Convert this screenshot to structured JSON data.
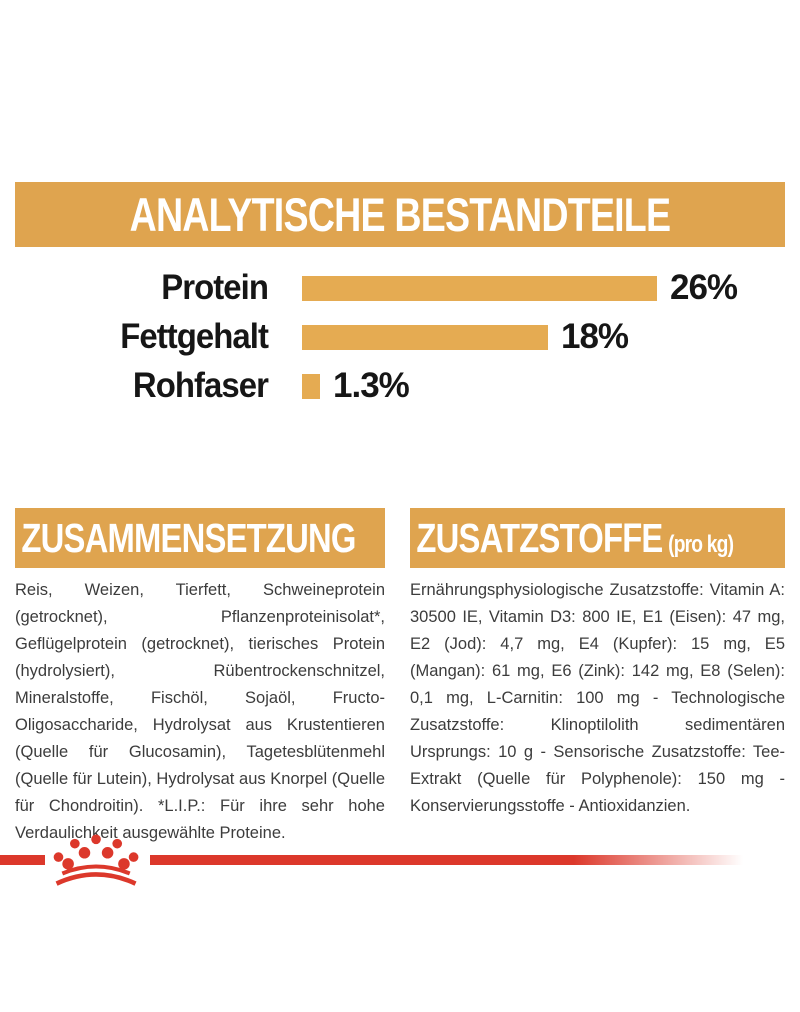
{
  "colors": {
    "gold_banner": "#DFA44F",
    "gold_bar": "#E5AB52",
    "red_accent": "#DC382B",
    "label_black": "#161616",
    "body_text": "#3C3C3C",
    "banner_text": "#FFFFFF"
  },
  "analytical": {
    "title": "ANALYTISCHE BESTANDTEILE",
    "rows": [
      {
        "label": "Protein",
        "value": 26,
        "value_label": "26%"
      },
      {
        "label": "Fettgehalt",
        "value": 18,
        "value_label": "18%"
      },
      {
        "label": "Rohfaser",
        "value": 1.3,
        "value_label": "1.3%"
      }
    ]
  },
  "chart_data": {
    "type": "bar",
    "orientation": "horizontal",
    "title": "ANALYTISCHE BESTANDTEILE",
    "categories": [
      "Protein",
      "Fettgehalt",
      "Rohfaser"
    ],
    "values": [
      26,
      18,
      1.3
    ],
    "value_labels": [
      "26%",
      "18%",
      "1.3%"
    ],
    "xlim": [
      0,
      26
    ],
    "grid": false,
    "legend": false,
    "bar_color": "#E5AB52"
  },
  "composition": {
    "title": "ZUSAMMENSETZUNG",
    "body": "Reis, Weizen, Tierfett, Schweineprotein (getrocknet), Pflanzenproteinisolat*, Geflügelprotein (getrocknet), tierisches Protein (hydrolysiert), Rübentrockenschnitzel, Mineralstoffe, Fischöl, Sojaöl, Fructo-Oligosaccharide, Hydrolysat aus Krustentieren (Quelle für Glucosamin), Tagetesblütenmehl (Quelle für Lutein), Hydrolysat aus Knorpel (Quelle für Chondroitin). *L.I.P.: Für ihre sehr hohe Verdaulichkeit ausgewählte Proteine."
  },
  "additives": {
    "title": "ZUSATZSTOFFE",
    "title_suffix": "(pro kg)",
    "body": "Ernährungsphysiologische Zusatzstoffe: Vitamin A: 30500 IE, Vitamin D3: 800 IE, E1 (Eisen): 47 mg, E2 (Jod): 4,7 mg, E4 (Kupfer): 15 mg, E5 (Mangan): 61 mg, E6 (Zink): 142 mg, E8 (Selen): 0,1 mg, L-Carnitin: 100 mg - Technologische Zusatzstoffe: Klinoptilolith sedimentären Ursprungs: 10 g - Sensorische Zusatzstoffe: Tee-Extrakt (Quelle für Polyphenole): 150 mg - Konservierungsstoffe - Antioxidanzien.",
    "footer_logo": "royal-canin-crown"
  }
}
